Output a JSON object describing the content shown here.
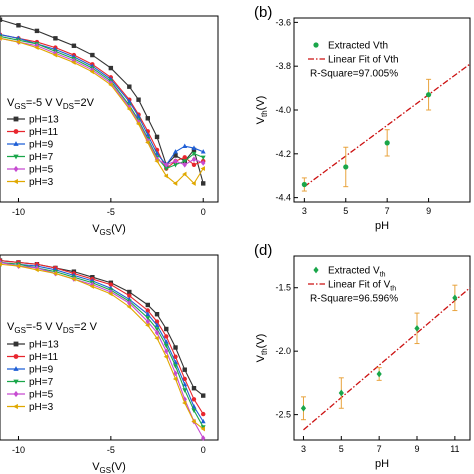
{
  "chart_data": [
    {
      "type": "line",
      "panel": "a",
      "title": "",
      "xlabel_main": "V",
      "xlabel_sub": "GS",
      "xlabel_unit": "(V)",
      "xlim": [
        -11,
        0.8
      ],
      "ylim": [
        0,
        1
      ],
      "xticks": [
        -10,
        -5,
        0
      ],
      "yticks": [],
      "conditions": {
        "vgs_main": "V",
        "vgs_sub": "GS",
        "vgs_val": "=-5 V",
        "vds_main": "V",
        "vds_sub": "DS",
        "vds_val": "=2V"
      },
      "series": [
        {
          "name": "pH=13",
          "color": "#333333",
          "marker": "square",
          "x": [
            -11,
            -10,
            -9,
            -8,
            -7,
            -6,
            -5,
            -4,
            -3.5,
            -3,
            -2.5,
            -2,
            -1.5,
            -1,
            -0.5,
            0
          ],
          "y": [
            0.98,
            0.95,
            0.92,
            0.88,
            0.84,
            0.79,
            0.72,
            0.62,
            0.55,
            0.45,
            0.35,
            0.2,
            0.25,
            0.22,
            0.28,
            0.1
          ]
        },
        {
          "name": "pH=11",
          "color": "#e8262e",
          "marker": "circle",
          "x": [
            -11,
            -10,
            -9,
            -8,
            -7,
            -6,
            -5,
            -4,
            -3.5,
            -3,
            -2.5,
            -2,
            -1.5,
            -1,
            -0.5,
            0
          ],
          "y": [
            0.9,
            0.88,
            0.86,
            0.83,
            0.79,
            0.74,
            0.67,
            0.55,
            0.47,
            0.38,
            0.28,
            0.18,
            0.22,
            0.24,
            0.2,
            0.22
          ]
        },
        {
          "name": "pH=9",
          "color": "#1f5fd6",
          "marker": "triangle",
          "x": [
            -11,
            -10,
            -9,
            -8,
            -7,
            -6,
            -5,
            -4,
            -3.5,
            -3,
            -2.5,
            -2,
            -1.5,
            -1,
            -0.5,
            0
          ],
          "y": [
            0.9,
            0.88,
            0.85,
            0.82,
            0.78,
            0.73,
            0.66,
            0.54,
            0.46,
            0.36,
            0.26,
            0.2,
            0.27,
            0.3,
            0.29,
            0.27
          ]
        },
        {
          "name": "pH=7",
          "color": "#1aa64a",
          "marker": "triangle-down",
          "x": [
            -11,
            -10,
            -9,
            -8,
            -7,
            -6,
            -5,
            -4,
            -3.5,
            -3,
            -2.5,
            -2,
            -1.5,
            -1,
            -0.5,
            0
          ],
          "y": [
            0.89,
            0.87,
            0.85,
            0.81,
            0.77,
            0.72,
            0.65,
            0.52,
            0.44,
            0.34,
            0.24,
            0.18,
            0.2,
            0.22,
            0.26,
            0.24
          ]
        },
        {
          "name": "pH=5",
          "color": "#c64bd1",
          "marker": "diamond",
          "x": [
            -11,
            -10,
            -9,
            -8,
            -7,
            -6,
            -5,
            -4,
            -3.5,
            -3,
            -2.5,
            -2,
            -1.5,
            -1,
            -0.5,
            0
          ],
          "y": [
            0.88,
            0.86,
            0.84,
            0.8,
            0.76,
            0.71,
            0.64,
            0.51,
            0.43,
            0.33,
            0.23,
            0.2,
            0.22,
            0.2,
            0.23,
            0.21
          ]
        },
        {
          "name": "pH=3",
          "color": "#e0a800",
          "marker": "triangle-left",
          "x": [
            -11,
            -10,
            -9,
            -8,
            -7,
            -6,
            -5,
            -4,
            -3.5,
            -3,
            -2.5,
            -2,
            -1.5,
            -1,
            -0.5,
            0
          ],
          "y": [
            0.88,
            0.86,
            0.83,
            0.79,
            0.75,
            0.7,
            0.63,
            0.5,
            0.42,
            0.32,
            0.22,
            0.14,
            0.1,
            0.15,
            0.1,
            0.18
          ]
        }
      ]
    },
    {
      "type": "scatter",
      "panel": "b",
      "panel_label": "(b)",
      "title": "",
      "xlabel": "pH",
      "ylabel_main": "V",
      "ylabel_sub": "th",
      "ylabel_unit": "(V)",
      "xlim": [
        2.5,
        11
      ],
      "ylim": [
        -4.42,
        -3.58
      ],
      "xticks": [
        3,
        5,
        7,
        9
      ],
      "yticks": [
        -3.6,
        -3.8,
        -4.0,
        -4.2,
        -4.4
      ],
      "ytick_labels": [
        "-3.6",
        "-3.8",
        "-4.0",
        "-4.2",
        "-4.4"
      ],
      "points": {
        "name": "Extracted Vth",
        "color": "#1aa64a",
        "x": [
          3,
          5,
          7,
          9
        ],
        "y": [
          -4.34,
          -4.26,
          -4.15,
          -3.93
        ],
        "err": [
          0.03,
          0.09,
          0.06,
          0.07
        ]
      },
      "fit": {
        "name": "Linear Fit of Vth",
        "color": "#cc1111",
        "x": [
          3,
          11
        ],
        "y": [
          -4.35,
          -3.79
        ]
      },
      "r_square": "R-Square=97.005%"
    },
    {
      "type": "line",
      "panel": "c",
      "title": "",
      "xlabel_main": "V",
      "xlabel_sub": "GS",
      "xlabel_unit": "(V)",
      "xlim": [
        -11,
        0.8
      ],
      "ylim": [
        0,
        1
      ],
      "xticks": [
        -10,
        -5,
        0
      ],
      "yticks": [],
      "conditions": {
        "vgs_main": "V",
        "vgs_sub": "GS",
        "vgs_val": "=-5 V",
        "vds_main": "V",
        "vds_sub": "DS",
        "vds_val": "=2 V"
      },
      "series": [
        {
          "name": "pH=13",
          "color": "#333333",
          "marker": "square",
          "x": [
            -11,
            -10,
            -9,
            -8,
            -7,
            -6,
            -5,
            -4,
            -3,
            -2.5,
            -2,
            -1.5,
            -1,
            -0.5,
            0
          ],
          "y": [
            0.97,
            0.96,
            0.95,
            0.93,
            0.91,
            0.88,
            0.85,
            0.8,
            0.73,
            0.68,
            0.6,
            0.5,
            0.38,
            0.28,
            0.24
          ]
        },
        {
          "name": "pH=11",
          "color": "#e8262e",
          "marker": "circle",
          "x": [
            -11,
            -10,
            -9,
            -8,
            -7,
            -6,
            -5,
            -4,
            -3,
            -2.5,
            -2,
            -1.5,
            -1,
            -0.5,
            0
          ],
          "y": [
            0.97,
            0.96,
            0.95,
            0.93,
            0.9,
            0.87,
            0.84,
            0.78,
            0.7,
            0.64,
            0.56,
            0.45,
            0.33,
            0.22,
            0.14
          ]
        },
        {
          "name": "pH=9",
          "color": "#1f5fd6",
          "marker": "triangle",
          "x": [
            -11,
            -10,
            -9,
            -8,
            -7,
            -6,
            -5,
            -4,
            -3,
            -2.5,
            -2,
            -1.5,
            -1,
            -0.5,
            0
          ],
          "y": [
            0.96,
            0.95,
            0.94,
            0.92,
            0.89,
            0.86,
            0.82,
            0.76,
            0.68,
            0.62,
            0.53,
            0.42,
            0.3,
            0.18,
            0.1
          ]
        },
        {
          "name": "pH=7",
          "color": "#1aa64a",
          "marker": "triangle-down",
          "x": [
            -11,
            -10,
            -9,
            -8,
            -7,
            -6,
            -5,
            -4,
            -3,
            -2.5,
            -2,
            -1.5,
            -1,
            -0.5,
            0
          ],
          "y": [
            0.96,
            0.95,
            0.93,
            0.91,
            0.88,
            0.85,
            0.81,
            0.75,
            0.66,
            0.6,
            0.51,
            0.4,
            0.27,
            0.16,
            0.07
          ]
        },
        {
          "name": "pH=5",
          "color": "#c64bd1",
          "marker": "diamond",
          "x": [
            -11,
            -10,
            -9,
            -8,
            -7,
            -6,
            -5,
            -4,
            -3,
            -2.5,
            -2,
            -1.5,
            -1,
            -0.5,
            0
          ],
          "y": [
            0.96,
            0.94,
            0.93,
            0.9,
            0.87,
            0.84,
            0.8,
            0.74,
            0.64,
            0.58,
            0.48,
            0.36,
            0.22,
            0.1,
            0.01
          ]
        },
        {
          "name": "pH=3",
          "color": "#e0a800",
          "marker": "triangle-left",
          "x": [
            -11,
            -10,
            -9,
            -8,
            -7,
            -6,
            -5,
            -4,
            -3,
            -2.5,
            -2,
            -1.5,
            -1,
            -0.5,
            0
          ],
          "y": [
            0.95,
            0.94,
            0.92,
            0.9,
            0.87,
            0.83,
            0.79,
            0.72,
            0.62,
            0.55,
            0.45,
            0.33,
            0.2,
            0.1,
            0.06
          ]
        }
      ]
    },
    {
      "type": "scatter",
      "panel": "d",
      "panel_label": "(d)",
      "title": "",
      "xlabel": "pH",
      "ylabel_main": "V",
      "ylabel_sub": "th",
      "ylabel_unit": "(V)",
      "xlim": [
        2.5,
        11.8
      ],
      "ylim": [
        -2.7,
        -1.25
      ],
      "xticks": [
        3,
        5,
        7,
        9,
        11
      ],
      "yticks": [
        -1.5,
        -2.0,
        -2.5
      ],
      "ytick_labels": [
        "-1.5",
        "-2.0",
        "-2.5"
      ],
      "points": {
        "name": "Extracted V",
        "name_sub": "th",
        "color": "#1aa64a",
        "x": [
          3,
          5,
          7,
          9,
          11
        ],
        "y": [
          -2.45,
          -2.33,
          -2.18,
          -1.82,
          -1.58
        ],
        "err": [
          0.09,
          0.12,
          0.05,
          0.12,
          0.1
        ]
      },
      "fit": {
        "name": "Linear Fit of V",
        "name_sub": "th",
        "color": "#cc1111",
        "x": [
          3,
          11.8
        ],
        "y": [
          -2.62,
          -1.5
        ]
      },
      "r_square": "R-Square=96.596%"
    }
  ]
}
